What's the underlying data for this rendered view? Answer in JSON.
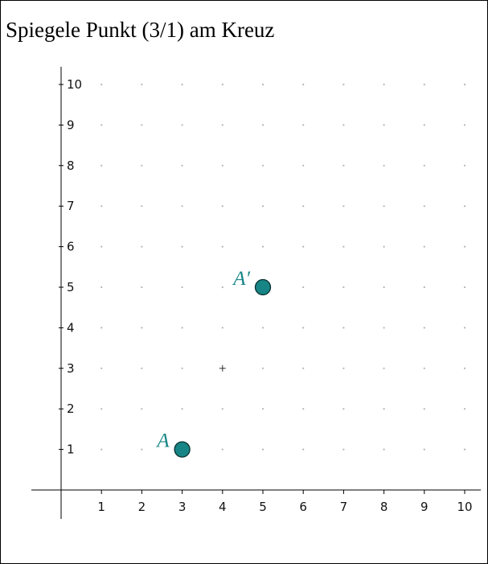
{
  "title": "Spiegele Punkt (3/1) am Kreuz",
  "colors": {
    "point_fill": "#178585",
    "point_stroke": "#0b2f2f",
    "label": "#178585",
    "axis": "#000000",
    "grid_dot": "#b4b4b4",
    "center_mark": "#333333"
  },
  "chart_data": {
    "type": "scatter",
    "xlim": [
      0,
      10
    ],
    "ylim": [
      0,
      10
    ],
    "x_ticks": [
      "1",
      "2",
      "3",
      "4",
      "5",
      "6",
      "7",
      "8",
      "9",
      "10"
    ],
    "y_ticks": [
      "1",
      "2",
      "3",
      "4",
      "5",
      "6",
      "7",
      "8",
      "9",
      "10"
    ],
    "grid": "dots",
    "points": [
      {
        "name": "A",
        "x": 3,
        "y": 1
      },
      {
        "name": "A′",
        "x": 5,
        "y": 5
      }
    ],
    "center_mark": {
      "x": 4,
      "y": 3,
      "symbol": "+"
    }
  }
}
